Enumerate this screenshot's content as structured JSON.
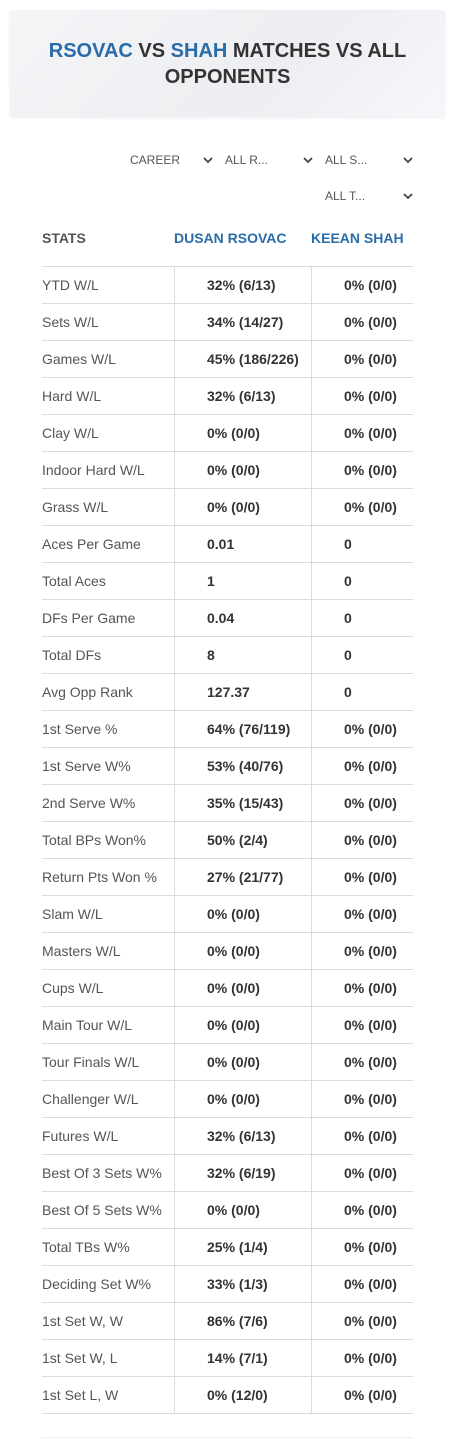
{
  "header": {
    "title": [
      "RSOVAC",
      "VS",
      "SHAH",
      "MATCHES VS ALL OPPONENTS"
    ]
  },
  "filters": [
    "CAREER",
    "ALL R...",
    "ALL S...",
    "ALL T..."
  ],
  "table": {
    "columns": [
      "STATS",
      "DUSAN RSOVAC",
      "KEEAN SHAH"
    ],
    "rows": [
      [
        "YTD W/L",
        "32% (6/13)",
        "0% (0/0)"
      ],
      [
        "Sets W/L",
        "34% (14/27)",
        "0% (0/0)"
      ],
      [
        "Games W/L",
        "45% (186/226)",
        "0% (0/0)"
      ],
      [
        "Hard W/L",
        "32% (6/13)",
        "0% (0/0)"
      ],
      [
        "Clay W/L",
        "0% (0/0)",
        "0% (0/0)"
      ],
      [
        "Indoor Hard W/L",
        "0% (0/0)",
        "0% (0/0)"
      ],
      [
        "Grass W/L",
        "0% (0/0)",
        "0% (0/0)"
      ],
      [
        "Aces Per Game",
        "0.01",
        "0"
      ],
      [
        "Total Aces",
        "1",
        "0"
      ],
      [
        "DFs Per Game",
        "0.04",
        "0"
      ],
      [
        "Total DFs",
        "8",
        "0"
      ],
      [
        "Avg Opp Rank",
        "127.37",
        "0"
      ],
      [
        "1st Serve %",
        "64% (76/119)",
        "0% (0/0)"
      ],
      [
        "1st Serve W%",
        "53% (40/76)",
        "0% (0/0)"
      ],
      [
        "2nd Serve W%",
        "35% (15/43)",
        "0% (0/0)"
      ],
      [
        "Total BPs Won%",
        "50% (2/4)",
        "0% (0/0)"
      ],
      [
        "Return Pts Won %",
        "27% (21/77)",
        "0% (0/0)"
      ],
      [
        "Slam W/L",
        "0% (0/0)",
        "0% (0/0)"
      ],
      [
        "Masters W/L",
        "0% (0/0)",
        "0% (0/0)"
      ],
      [
        "Cups W/L",
        "0% (0/0)",
        "0% (0/0)"
      ],
      [
        "Main Tour W/L",
        "0% (0/0)",
        "0% (0/0)"
      ],
      [
        "Tour Finals W/L",
        "0% (0/0)",
        "0% (0/0)"
      ],
      [
        "Challenger W/L",
        "0% (0/0)",
        "0% (0/0)"
      ],
      [
        "Futures W/L",
        "32% (6/13)",
        "0% (0/0)"
      ],
      [
        "Best Of 3 Sets W%",
        "32% (6/19)",
        "0% (0/0)"
      ],
      [
        "Best Of 5 Sets W%",
        "0% (0/0)",
        "0% (0/0)"
      ],
      [
        "Total TBs W%",
        "25% (1/4)",
        "0% (0/0)"
      ],
      [
        "Deciding Set W%",
        "33% (1/3)",
        "0% (0/0)"
      ],
      [
        "1st Set W, W",
        "86% (7/6)",
        "0% (0/0)"
      ],
      [
        "1st Set W, L",
        "14% (7/1)",
        "0% (0/0)"
      ],
      [
        "1st Set L, W",
        "0% (12/0)",
        "0% (0/0)"
      ]
    ]
  }
}
